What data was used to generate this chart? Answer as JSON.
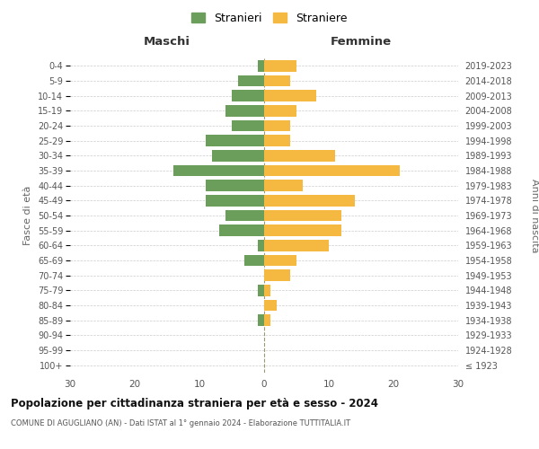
{
  "age_groups": [
    "100+",
    "95-99",
    "90-94",
    "85-89",
    "80-84",
    "75-79",
    "70-74",
    "65-69",
    "60-64",
    "55-59",
    "50-54",
    "45-49",
    "40-44",
    "35-39",
    "30-34",
    "25-29",
    "20-24",
    "15-19",
    "10-14",
    "5-9",
    "0-4"
  ],
  "birth_years": [
    "≤ 1923",
    "1924-1928",
    "1929-1933",
    "1934-1938",
    "1939-1943",
    "1944-1948",
    "1949-1953",
    "1954-1958",
    "1959-1963",
    "1964-1968",
    "1969-1973",
    "1974-1978",
    "1979-1983",
    "1984-1988",
    "1989-1993",
    "1994-1998",
    "1999-2003",
    "2004-2008",
    "2009-2013",
    "2014-2018",
    "2019-2023"
  ],
  "maschi": [
    0,
    0,
    0,
    1,
    0,
    1,
    0,
    3,
    1,
    7,
    6,
    9,
    9,
    14,
    8,
    9,
    5,
    6,
    5,
    4,
    1
  ],
  "femmine": [
    0,
    0,
    0,
    1,
    2,
    1,
    4,
    5,
    10,
    12,
    12,
    14,
    6,
    21,
    11,
    4,
    4,
    5,
    8,
    4,
    5
  ],
  "maschi_color": "#6a9e5a",
  "femmine_color": "#f5b942",
  "title": "Popolazione per cittadinanza straniera per età e sesso - 2024",
  "subtitle": "COMUNE DI AGUGLIANO (AN) - Dati ISTAT al 1° gennaio 2024 - Elaborazione TUTTITALIA.IT",
  "xlabel_left": "Maschi",
  "xlabel_right": "Femmine",
  "ylabel_left": "Fasce di età",
  "ylabel_right": "Anni di nascita",
  "legend_maschi": "Stranieri",
  "legend_femmine": "Straniere",
  "xlim": 30,
  "background_color": "#ffffff",
  "grid_color": "#cccccc",
  "bar_height": 0.75
}
